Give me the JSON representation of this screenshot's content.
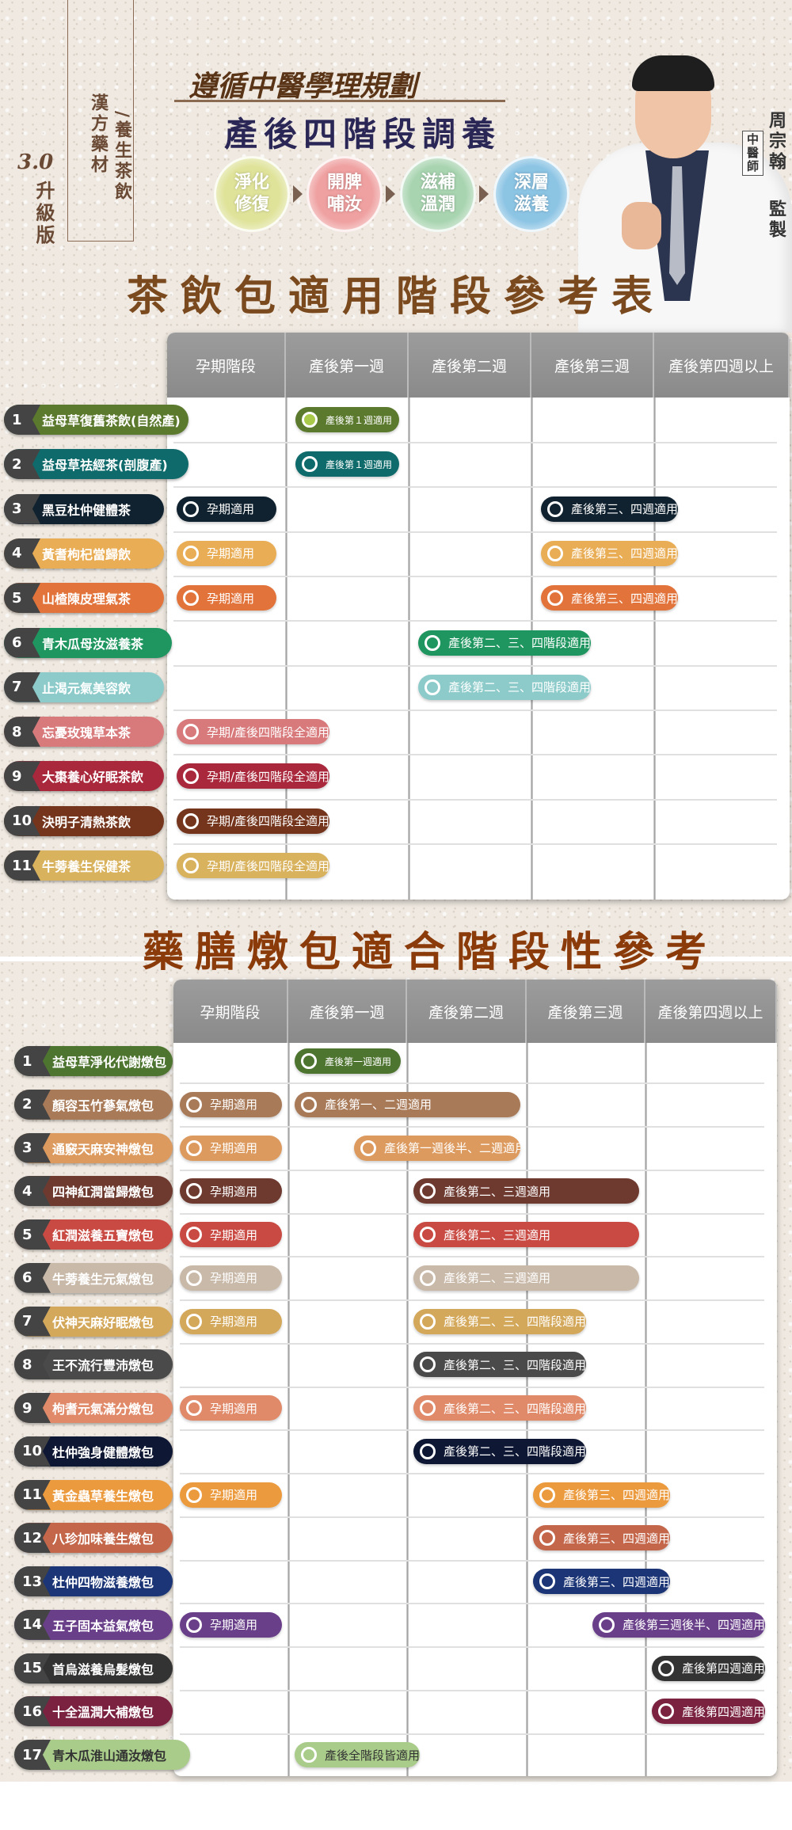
{
  "header": {
    "side_labels": [
      "漢方藥材",
      "/養生茶飲"
    ],
    "version": "3.0",
    "version_label": "升級版",
    "subtitle": "遵循中醫學理規劃",
    "title": "產後四階段調養",
    "stages": [
      {
        "line1": "淨化",
        "line2": "修復",
        "color": "#dfe39a"
      },
      {
        "line1": "開脾",
        "line2": "哺汝",
        "color": "#efa0a0"
      },
      {
        "line1": "滋補",
        "line2": "溫潤",
        "color": "#a8d4b0"
      },
      {
        "line1": "深層",
        "line2": "滋養",
        "color": "#8cc4e4"
      }
    ],
    "doctor_name": "周宗翰",
    "doctor_title": "中醫師",
    "supervise": "監製"
  },
  "tea": {
    "title": "茶飲包適用階段參考表",
    "columns": [
      "孕期階段",
      "產後第一週",
      "產後第二週",
      "產後第三週",
      "產後第四週以上"
    ],
    "rows": [
      {
        "no": "1",
        "name": "益母草復舊茶飲(自然產)",
        "color": "#5b7a2e",
        "bars": [
          {
            "label": "產後第１週適用",
            "from": 1,
            "to": 1,
            "filled": "#a8c94a"
          }
        ]
      },
      {
        "no": "2",
        "name": "益母草祛經茶(剖腹產)",
        "color": "#0f6b6b",
        "bars": [
          {
            "label": "產後第１週適用",
            "from": 1,
            "to": 1
          }
        ]
      },
      {
        "no": "3",
        "name": "黑豆杜仲健體茶",
        "color": "#10222f",
        "bars": [
          {
            "label": "孕期適用",
            "from": 0,
            "to": 0
          },
          {
            "label": "產後第三、四週適用",
            "from": 3,
            "to": 4
          }
        ]
      },
      {
        "no": "4",
        "name": "黃耆枸杞當歸飲",
        "color": "#e9ad55",
        "bars": [
          {
            "label": "孕期適用",
            "from": 0,
            "to": 0
          },
          {
            "label": "產後第三、四週適用",
            "from": 3,
            "to": 4
          }
        ]
      },
      {
        "no": "5",
        "name": "山楂陳皮理氣茶",
        "color": "#e2733a",
        "bars": [
          {
            "label": "孕期適用",
            "from": 0,
            "to": 0
          },
          {
            "label": "產後第三、四週適用",
            "from": 3,
            "to": 4
          }
        ]
      },
      {
        "no": "6",
        "name": "青木瓜母汝滋養茶",
        "color": "#1f9660",
        "bars": [
          {
            "label": "產後第二、三、四階段適用",
            "from": 2,
            "to": 4
          }
        ]
      },
      {
        "no": "7",
        "name": "止渴元氣美容飲",
        "color": "#8dcbcb",
        "bars": [
          {
            "label": "產後第二、三、四階段適用",
            "from": 2,
            "to": 4
          }
        ]
      },
      {
        "no": "8",
        "name": "忘憂玫瑰草本茶",
        "color": "#d87a7c",
        "bars": [
          {
            "label": "孕期/產後四階段全適用",
            "from": 0,
            "to": 4
          }
        ]
      },
      {
        "no": "9",
        "name": "大棗養心好眠茶飲",
        "color": "#a9283c",
        "bars": [
          {
            "label": "孕期/產後四階段全適用",
            "from": 0,
            "to": 4
          }
        ]
      },
      {
        "no": "10",
        "name": "決明子清熱茶飲",
        "color": "#74351c",
        "bars": [
          {
            "label": "孕期/產後四階段全適用",
            "from": 0,
            "to": 4
          }
        ]
      },
      {
        "no": "11",
        "name": "牛蒡養生保健茶",
        "color": "#d9b25e",
        "bars": [
          {
            "label": "孕期/產後四階段全適用",
            "from": 0,
            "to": 4
          }
        ]
      }
    ]
  },
  "stew": {
    "title": "藥膳燉包適合階段性參考",
    "columns": [
      "孕期階段",
      "產後第一週",
      "產後第二週",
      "產後第三週",
      "產後第四週以上"
    ],
    "rows": [
      {
        "no": "1",
        "name": "益母草淨化代謝燉包",
        "color": "#4e7530",
        "bars": [
          {
            "label": "產後第一週適用",
            "from": 1,
            "to": 1
          }
        ]
      },
      {
        "no": "2",
        "name": "顏容玉竹蔘氣燉包",
        "color": "#a97a58",
        "bars": [
          {
            "label": "孕期適用",
            "from": 0,
            "to": 0
          },
          {
            "label": "產後第一、二週適用",
            "from": 1,
            "to": 2
          }
        ]
      },
      {
        "no": "3",
        "name": "通竅天麻安神燉包",
        "color": "#dd9a5e",
        "bars": [
          {
            "label": "孕期適用",
            "from": 0,
            "to": 0
          },
          {
            "label": "產後第一週後半、二週適用",
            "from": 1.5,
            "to": 2
          }
        ]
      },
      {
        "no": "4",
        "name": "四神紅潤當歸燉包",
        "color": "#6e3a30",
        "bars": [
          {
            "label": "孕期適用",
            "from": 0,
            "to": 0
          },
          {
            "label": "產後第二、三週適用",
            "from": 2,
            "to": 3
          }
        ]
      },
      {
        "no": "5",
        "name": "紅潤滋養五寶燉包",
        "color": "#c94a42",
        "bars": [
          {
            "label": "孕期適用",
            "from": 0,
            "to": 0
          },
          {
            "label": "產後第二、三週適用",
            "from": 2,
            "to": 3
          }
        ]
      },
      {
        "no": "6",
        "name": "牛蒡養生元氣燉包",
        "color": "#c9b9a9",
        "bars": [
          {
            "label": "孕期適用",
            "from": 0,
            "to": 0
          },
          {
            "label": "產後第二、三週適用",
            "from": 2,
            "to": 3
          }
        ]
      },
      {
        "no": "7",
        "name": "伏神天麻好眠燉包",
        "color": "#d4a85a",
        "bars": [
          {
            "label": "孕期適用",
            "from": 0,
            "to": 0
          },
          {
            "label": "產後第二、三、四階段適用",
            "from": 2,
            "to": 4
          }
        ]
      },
      {
        "no": "8",
        "name": "王不流行豐沛燉包",
        "color": "#4a4a4a",
        "bars": [
          {
            "label": "產後第二、三、四階段適用",
            "from": 2,
            "to": 4
          }
        ]
      },
      {
        "no": "9",
        "name": "枸耆元氣滿分燉包",
        "color": "#e08a6a",
        "bars": [
          {
            "label": "孕期適用",
            "from": 0,
            "to": 0
          },
          {
            "label": "產後第二、三、四階段適用",
            "from": 2,
            "to": 4
          }
        ]
      },
      {
        "no": "10",
        "name": "杜仲強身健體燉包",
        "color": "#0e1733",
        "bars": [
          {
            "label": "產後第二、三、四階段適用",
            "from": 2,
            "to": 4
          }
        ]
      },
      {
        "no": "11",
        "name": "黃金蟲草養生燉包",
        "color": "#ec9a3e",
        "bars": [
          {
            "label": "孕期適用",
            "from": 0,
            "to": 0
          },
          {
            "label": "產後第三、四週適用",
            "from": 3,
            "to": 4
          }
        ]
      },
      {
        "no": "12",
        "name": "八珍加味養生燉包",
        "color": "#c4664a",
        "bars": [
          {
            "label": "產後第三、四週適用",
            "from": 3,
            "to": 4
          }
        ]
      },
      {
        "no": "13",
        "name": "杜仲四物滋養燉包",
        "color": "#1b3576",
        "bars": [
          {
            "label": "產後第三、四週適用",
            "from": 3,
            "to": 4
          }
        ]
      },
      {
        "no": "14",
        "name": "五子固本益氣燉包",
        "color": "#6a3f8a",
        "bars": [
          {
            "label": "孕期適用",
            "from": 0,
            "to": 0
          },
          {
            "label": "產後第三週後半、四週適用",
            "from": 3.5,
            "to": 4
          }
        ]
      },
      {
        "no": "15",
        "name": "首烏滋養烏髮燉包",
        "color": "#333333",
        "bars": [
          {
            "label": "產後第四週適用",
            "from": 4,
            "to": 4
          }
        ]
      },
      {
        "no": "16",
        "name": "十全溫潤大補燉包",
        "color": "#7a2240",
        "bars": [
          {
            "label": "產後第四週適用",
            "from": 4,
            "to": 4
          }
        ]
      },
      {
        "no": "17",
        "name": "青木瓜淮山通汝燉包",
        "color": "#a9cc8a",
        "text_color": "#333333",
        "bars": [
          {
            "label": "產後全階段皆適用",
            "from": 1,
            "to": 4
          }
        ]
      }
    ]
  }
}
